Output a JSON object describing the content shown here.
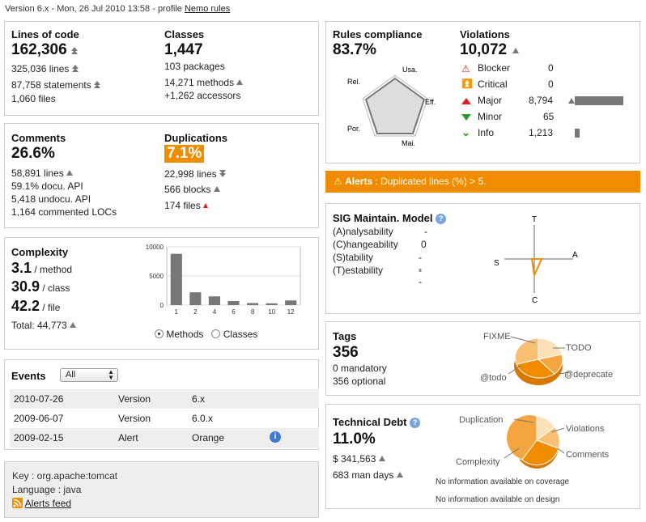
{
  "header": {
    "version_text": "Version 6.x - Mon, 26 Jul 2010 13:58 - profile",
    "profile_link": "Nemo rules"
  },
  "size": {
    "loc_label": "Lines of code",
    "loc_value": "162,306",
    "lines": "325,036 lines",
    "statements": "87,758 statements",
    "files": "1,060 files",
    "classes_label": "Classes",
    "classes_value": "1,447",
    "packages": "103 packages",
    "methods": "14,271 methods",
    "accessors": "+1,262 accessors"
  },
  "comments": {
    "comments_label": "Comments",
    "comments_value": "26.6%",
    "lines": "58,891 lines",
    "docu_api": "59.1% docu. API",
    "undocu_api": "5,418 undocu. API",
    "commented_locs": "1,164 commented LOCs",
    "dup_label": "Duplications",
    "dup_value": "7.1%",
    "dup_lines": "22,998 lines",
    "dup_blocks": "566 blocks",
    "dup_files": "174 files"
  },
  "complexity": {
    "label": "Complexity",
    "method_value": "3.1",
    "method_unit": "/ method",
    "class_value": "30.9",
    "class_unit": "/ class",
    "file_value": "42.2",
    "file_unit": "/ file",
    "total": "Total: 44,773",
    "radio_methods": "Methods",
    "radio_classes": "Classes"
  },
  "chart_data": {
    "type": "bar",
    "categories": [
      "1",
      "2",
      "4",
      "6",
      "8",
      "10",
      "12"
    ],
    "values": [
      8800,
      2200,
      1500,
      700,
      350,
      300,
      800
    ],
    "ylim": [
      0,
      10000
    ],
    "yticks": [
      "0",
      "5000",
      "10000"
    ],
    "grid": true,
    "colors": {
      "bar": "#777777"
    }
  },
  "events": {
    "label": "Events",
    "filter_value": "All",
    "rows": [
      {
        "date": "2010-07-26",
        "type": "Version",
        "name": "6.x"
      },
      {
        "date": "2009-06-07",
        "type": "Version",
        "name": "6.0.x"
      },
      {
        "date": "2009-02-15",
        "type": "Alert",
        "name": "Orange"
      }
    ]
  },
  "project": {
    "key": "Key : org.apache:tomcat",
    "language": "Language : java",
    "alerts_feed": "Alerts feed"
  },
  "rules": {
    "label": "Rules compliance",
    "value": "83.7%",
    "radar_axes": [
      "Usa.",
      "Eff.",
      "Mai.",
      "Por.",
      "Rel."
    ],
    "violations_label": "Violations",
    "violations_value": "10,072",
    "severities": [
      {
        "name": "Blocker",
        "count": "0",
        "bar": 0
      },
      {
        "name": "Critical",
        "count": "0",
        "bar": 0
      },
      {
        "name": "Major",
        "count": "8,794",
        "bar": 1.0
      },
      {
        "name": "Minor",
        "count": "65",
        "bar": 0
      },
      {
        "name": "Info",
        "count": "1,213",
        "bar": 0.1
      }
    ]
  },
  "alert": {
    "prefix": "Alerts",
    "text": " : Duplicated lines (%) > 5."
  },
  "sig": {
    "label": "SIG Maintain. Model",
    "rows": [
      {
        "name": "(A)nalysability",
        "value": "-"
      },
      {
        "name": "(C)hangeability",
        "value": "0"
      },
      {
        "name": "(S)tability",
        "value": "--"
      },
      {
        "name": "(T)estability",
        "value": "--"
      }
    ],
    "axes": {
      "t": "T",
      "a": "A",
      "s": "S",
      "c": "C"
    }
  },
  "tags": {
    "label": "Tags",
    "value": "356",
    "mandatory": "0 mandatory",
    "optional": "356 optional",
    "pie_labels": [
      "FIXME",
      "TODO",
      "@todo",
      "@deprecate"
    ]
  },
  "debt": {
    "label": "Technical Debt",
    "value": "11.0%",
    "cost": "$ 341,563",
    "days": "683 man days",
    "coverage_note": "No information available on coverage",
    "design_note": "No information available on design",
    "pie_labels": [
      "Duplication",
      "Violations",
      "Comments",
      "Complexity"
    ]
  },
  "colors": {
    "orange": "#f08c00",
    "bar_gray": "#777777",
    "border": "#cccccc"
  }
}
